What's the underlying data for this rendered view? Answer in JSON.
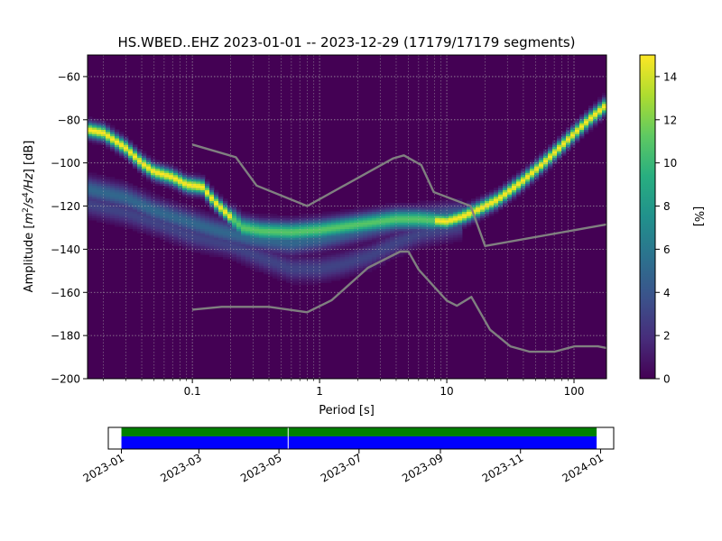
{
  "chart_data": [
    {
      "type": "heatmap",
      "title": "HS.WBED..EHZ   2023-01-01 -- 2023-12-29  (17179/17179 segments)",
      "xlabel": "Period [s]",
      "ylabel_parts": [
        "Amplitude [",
        "m",
        "2",
        "/",
        "s",
        "4",
        "/",
        "Hz",
        "] [dB]"
      ],
      "x_scale": "log",
      "xlim": [
        0.015,
        180
      ],
      "ylim": [
        -200,
        -50
      ],
      "x_ticks": [
        {
          "value": 0.1,
          "label": "0.1"
        },
        {
          "value": 1,
          "label": "1"
        },
        {
          "value": 10,
          "label": "10"
        },
        {
          "value": 100,
          "label": "100"
        }
      ],
      "y_ticks": [
        {
          "value": -60,
          "label": "−60"
        },
        {
          "value": -80,
          "label": "−80"
        },
        {
          "value": -100,
          "label": "−100"
        },
        {
          "value": -120,
          "label": "−120"
        },
        {
          "value": -140,
          "label": "−140"
        },
        {
          "value": -160,
          "label": "−160"
        },
        {
          "value": -180,
          "label": "−180"
        },
        {
          "value": -200,
          "label": "−200"
        }
      ],
      "grid": true,
      "colorbar": {
        "label": "[%]",
        "range": [
          0,
          15
        ],
        "ticks": [
          {
            "value": 0,
            "label": "0"
          },
          {
            "value": 2,
            "label": "2"
          },
          {
            "value": 4,
            "label": "4"
          },
          {
            "value": 6,
            "label": "6"
          },
          {
            "value": 8,
            "label": "8"
          },
          {
            "value": 10,
            "label": "10"
          },
          {
            "value": 12,
            "label": "12"
          },
          {
            "value": 14,
            "label": "14"
          }
        ]
      },
      "noise_models": [
        {
          "points": [
            [
              0.1,
              -91.5
            ],
            [
              0.22,
              -97.4
            ],
            [
              0.32,
              -110.5
            ],
            [
              0.8,
              -120
            ],
            [
              3.8,
              -97.9
            ],
            [
              4.6,
              -96.5
            ],
            [
              6.3,
              -101
            ],
            [
              7.9,
              -113.5
            ],
            [
              15.4,
              -120
            ],
            [
              20,
              -138.5
            ],
            [
              180,
              -128.5
            ]
          ]
        },
        {
          "points": [
            [
              0.1,
              -168
            ],
            [
              0.17,
              -166.7
            ],
            [
              0.4,
              -166.7
            ],
            [
              0.8,
              -169.2
            ],
            [
              1.24,
              -163.7
            ],
            [
              2.4,
              -148.6
            ],
            [
              4.3,
              -141.1
            ],
            [
              5.0,
              -141.1
            ],
            [
              6.0,
              -149.4
            ],
            [
              10,
              -163.8
            ],
            [
              12,
              -166.2
            ],
            [
              15.6,
              -162.1
            ],
            [
              21.9,
              -177.3
            ],
            [
              31.6,
              -185
            ],
            [
              45,
              -187.5
            ],
            [
              70,
              -187.5
            ],
            [
              101,
              -185
            ],
            [
              154,
              -185
            ],
            [
              180,
              -185.8
            ]
          ]
        }
      ],
      "density_bands": [
        {
          "points": [
            [
              0.015,
              -84.5
            ],
            [
              0.02,
              -86
            ],
            [
              0.03,
              -93
            ],
            [
              0.04,
              -100
            ],
            [
              0.05,
              -104
            ],
            [
              0.07,
              -106.5
            ],
            [
              0.09,
              -110
            ],
            [
              0.12,
              -111
            ],
            [
              0.15,
              -118
            ],
            [
              0.2,
              -125
            ],
            [
              0.25,
              -130
            ],
            [
              0.35,
              -131.5
            ],
            [
              0.6,
              -132
            ],
            [
              1,
              -131
            ],
            [
              2,
              -128.5
            ],
            [
              4,
              -126
            ],
            [
              6,
              -126
            ],
            [
              10,
              -127
            ],
            [
              13,
              -125
            ],
            [
              17,
              -122
            ],
            [
              25,
              -117
            ],
            [
              40,
              -108
            ],
            [
              60,
              -99
            ],
            [
              90,
              -89
            ],
            [
              130,
              -80
            ],
            [
              180,
              -73
            ]
          ],
          "peak": 15,
          "width_db": 2.2
        },
        {
          "points": [
            [
              0.015,
              -112
            ],
            [
              0.03,
              -116
            ],
            [
              0.05,
              -122
            ],
            [
              0.08,
              -126
            ],
            [
              0.15,
              -131
            ],
            [
              0.3,
              -135
            ],
            [
              0.6,
              -137
            ],
            [
              1,
              -135
            ],
            [
              2,
              -131
            ],
            [
              4,
              -127
            ],
            [
              8,
              -125
            ],
            [
              13,
              -124
            ]
          ],
          "peak": 5,
          "width_db": 3.5
        },
        {
          "points": [
            [
              0.015,
              -119
            ],
            [
              0.03,
              -123
            ],
            [
              0.06,
              -129
            ],
            [
              0.1,
              -134
            ],
            [
              0.2,
              -138
            ],
            [
              0.35,
              -144
            ],
            [
              0.6,
              -149
            ],
            [
              1,
              -149
            ],
            [
              1.5,
              -147
            ],
            [
              2.5,
              -143
            ],
            [
              4,
              -137
            ],
            [
              6,
              -133
            ],
            [
              9,
              -131
            ],
            [
              13,
              -129
            ]
          ],
          "peak": 3,
          "width_db": 3.5
        }
      ]
    },
    {
      "type": "bar",
      "x_type": "date",
      "xlim": [
        "2022-12-22",
        "2024-01-11"
      ],
      "x_ticks": [
        {
          "value": "2023-01-01",
          "label": "2023-01"
        },
        {
          "value": "2023-03-01",
          "label": "2023-03"
        },
        {
          "value": "2023-05-01",
          "label": "2023-05"
        },
        {
          "value": "2023-07-01",
          "label": "2023-07"
        },
        {
          "value": "2023-09-01",
          "label": "2023-09"
        },
        {
          "value": "2023-11-01",
          "label": "2023-11"
        },
        {
          "value": "2024-01-01",
          "label": "2024-01"
        }
      ],
      "coverage": [
        {
          "start": "2023-01-01",
          "end": "2023-12-29",
          "color": "#008000"
        },
        {
          "start": "2023-01-01",
          "end": "2023-12-29",
          "color": "#0000ff"
        }
      ],
      "gaps": [
        "2023-05-08"
      ]
    }
  ]
}
